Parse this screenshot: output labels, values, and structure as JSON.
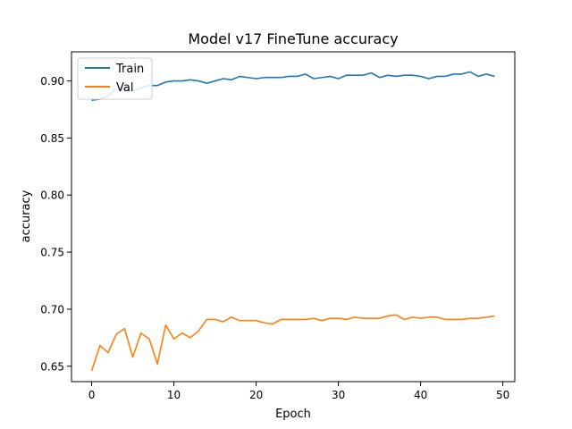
{
  "chart_data": {
    "type": "line",
    "title": "Model v17 FineTune accuracy",
    "xlabel": "Epoch",
    "ylabel": "accuracy",
    "xlim": [
      -2.45,
      51.45
    ],
    "ylim": [
      0.6365,
      0.9255
    ],
    "xticks": [
      0,
      10,
      20,
      30,
      40,
      50
    ],
    "yticks": [
      0.65,
      0.7,
      0.75,
      0.8,
      0.85,
      0.9
    ],
    "ytick_labels": [
      "0.65",
      "0.70",
      "0.75",
      "0.80",
      "0.85",
      "0.90"
    ],
    "legend": "top-left",
    "grid": false,
    "x": [
      0,
      1,
      2,
      3,
      4,
      5,
      6,
      7,
      8,
      9,
      10,
      11,
      12,
      13,
      14,
      15,
      16,
      17,
      18,
      19,
      20,
      21,
      22,
      23,
      24,
      25,
      26,
      27,
      28,
      29,
      30,
      31,
      32,
      33,
      34,
      35,
      36,
      37,
      38,
      39,
      40,
      41,
      42,
      43,
      44,
      45,
      46,
      47,
      48,
      49
    ],
    "series": [
      {
        "name": "Train",
        "color": "#1f77b4",
        "values": [
          0.883,
          0.884,
          0.887,
          0.893,
          0.893,
          0.891,
          0.894,
          0.896,
          0.896,
          0.899,
          0.9,
          0.9,
          0.901,
          0.9,
          0.898,
          0.9,
          0.902,
          0.901,
          0.904,
          0.903,
          0.902,
          0.903,
          0.903,
          0.903,
          0.904,
          0.904,
          0.906,
          0.902,
          0.903,
          0.904,
          0.902,
          0.905,
          0.905,
          0.905,
          0.907,
          0.903,
          0.905,
          0.904,
          0.905,
          0.905,
          0.904,
          0.902,
          0.904,
          0.904,
          0.906,
          0.906,
          0.908,
          0.904,
          0.906,
          0.904
        ]
      },
      {
        "name": "Val",
        "color": "#ff7f0e",
        "values": [
          0.646,
          0.668,
          0.662,
          0.678,
          0.683,
          0.658,
          0.679,
          0.674,
          0.652,
          0.686,
          0.674,
          0.679,
          0.675,
          0.681,
          0.691,
          0.691,
          0.689,
          0.693,
          0.69,
          0.69,
          0.69,
          0.688,
          0.687,
          0.691,
          0.691,
          0.691,
          0.691,
          0.692,
          0.69,
          0.692,
          0.692,
          0.691,
          0.693,
          0.692,
          0.692,
          0.692,
          0.694,
          0.695,
          0.691,
          0.693,
          0.692,
          0.693,
          0.693,
          0.691,
          0.691,
          0.691,
          0.692,
          0.692,
          0.693,
          0.694
        ]
      }
    ]
  }
}
